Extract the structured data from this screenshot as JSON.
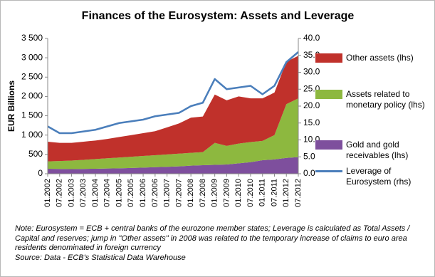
{
  "chart_data": {
    "type": "stacked-area-line",
    "title": "Finances of the Eurosystem: Assets and Leverage",
    "ylabel": "EUR Billions",
    "categories": [
      "01.2002",
      "07.2002",
      "01.2003",
      "07.2003",
      "01.2004",
      "07.2004",
      "01.2005",
      "07.2005",
      "01.2006",
      "07.2006",
      "01.2007",
      "07.2007",
      "01.2008",
      "07.2008",
      "01.2009",
      "07.2009",
      "01.2010",
      "07.2010",
      "01.2011",
      "07.2011",
      "01.2012",
      "07.2012"
    ],
    "series": [
      {
        "name": "Other assets (lhs)",
        "color": "#c0312b",
        "values": [
          510,
          470,
          460,
          470,
          480,
          500,
          530,
          560,
          590,
          620,
          700,
          780,
          910,
          920,
          1250,
          1180,
          1220,
          1130,
          1100,
          1100,
          1100,
          1100
        ]
      },
      {
        "name": "Assets related to monetary policy (lhs)",
        "color": "#8db83f",
        "values": [
          190,
          205,
          220,
          235,
          250,
          265,
          280,
          290,
          300,
          310,
          320,
          330,
          330,
          340,
          570,
          480,
          510,
          520,
          500,
          630,
          1390,
          1520
        ]
      },
      {
        "name": "Gold and gold receivables (lhs)",
        "color": "#7e4f9d",
        "values": [
          130,
          125,
          120,
          125,
          130,
          135,
          140,
          150,
          160,
          170,
          180,
          190,
          210,
          220,
          230,
          240,
          270,
          300,
          350,
          370,
          410,
          430
        ]
      },
      {
        "name": "Leverage of Eurosystem (rhs)",
        "color": "#4a7ebb",
        "axis": "y2",
        "values": [
          14,
          12,
          12,
          12.5,
          13,
          14,
          15,
          15.5,
          16,
          17,
          17.5,
          18,
          20,
          21,
          28,
          25,
          25.5,
          26,
          23.5,
          26,
          33,
          36
        ]
      }
    ],
    "ylim": [
      0,
      3500
    ],
    "yticks": [
      0,
      500,
      {
        "value": 1000,
        "label": "1 000"
      },
      {
        "value": 1500,
        "label": "1 500"
      },
      {
        "value": 2000,
        "label": "2 000"
      },
      {
        "value": 2500,
        "label": "2 500"
      },
      {
        "value": 3000,
        "label": "3 000"
      },
      {
        "value": 3500,
        "label": "3 500"
      }
    ],
    "y2lim": [
      0,
      40
    ],
    "y2ticks": [
      {
        "value": 0,
        "label": "0.0"
      },
      {
        "value": 5,
        "label": "5.0"
      },
      {
        "value": 10,
        "label": "10.0"
      },
      {
        "value": 15,
        "label": "15.0"
      },
      {
        "value": 20,
        "label": "20.0"
      },
      {
        "value": 25,
        "label": "25.0"
      },
      {
        "value": 30,
        "label": "30.0"
      },
      {
        "value": 35,
        "label": "35.0"
      },
      {
        "value": 40,
        "label": "40.0"
      }
    ],
    "note": "Note: Eurosystem = ECB + central banks of the eurozone member states; Leverage is calculated as Total Assets / Capital and reserves; jump in \"Other assets\" in 2008 was related to the temporary increase of claims to euro area residents denominated in foreign currency",
    "source": "Source: Data - ECB's Statistical Data Warehouse"
  }
}
